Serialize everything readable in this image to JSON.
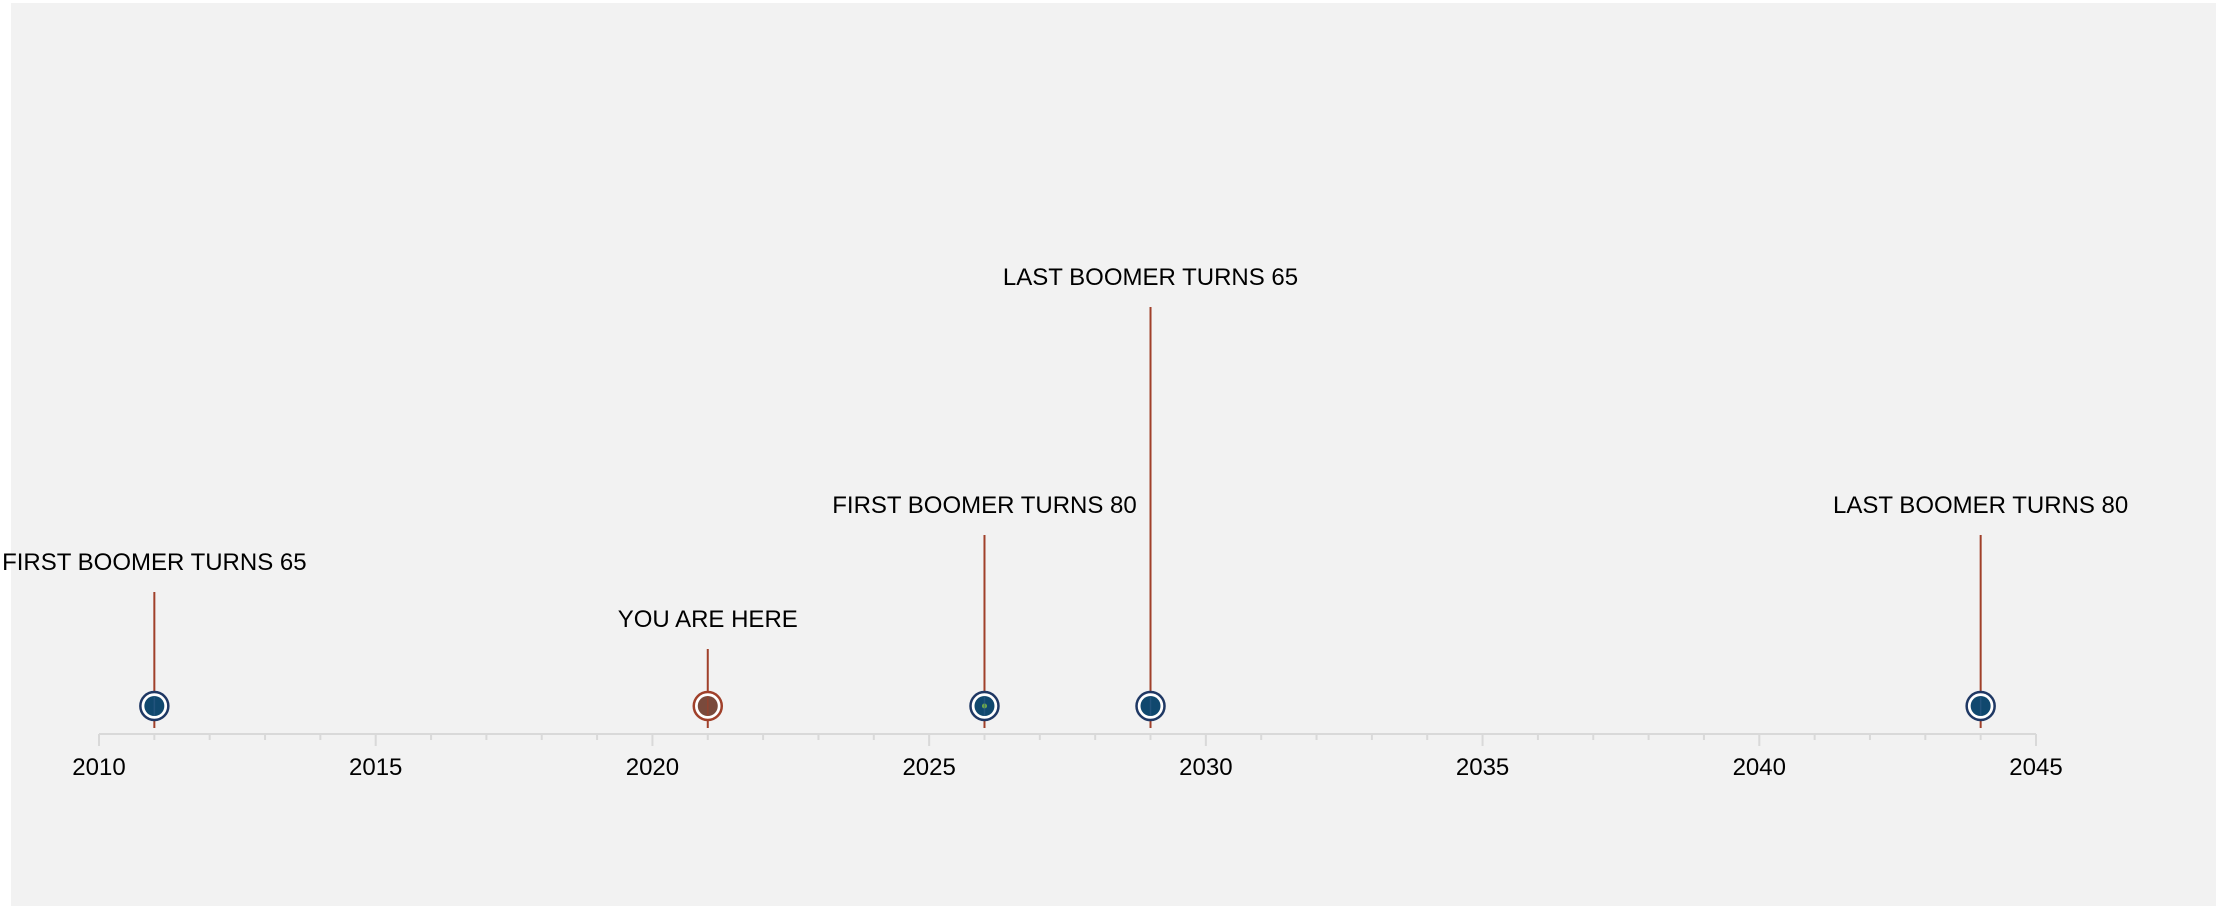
{
  "chart_data": {
    "type": "timeline",
    "title": "",
    "xlabel": "",
    "ylabel": "",
    "xlim": [
      2010,
      2045
    ],
    "major_ticks": [
      2010,
      2015,
      2020,
      2025,
      2030,
      2035,
      2040,
      2045
    ],
    "tick_labels": [
      "2010",
      "2015",
      "2020",
      "2025",
      "2030",
      "2035",
      "2040",
      "2045"
    ],
    "minor_tick_step": 1,
    "grid": false,
    "legend": "none",
    "events": [
      {
        "year": 2011,
        "label": "FIRST BOOMER TURNS 65",
        "height": 2.0,
        "marker_color": "#1f3864"
      },
      {
        "year": 2021,
        "label": "YOU ARE HERE",
        "height": 1.0,
        "marker_color": "#a0402a"
      },
      {
        "year": 2026,
        "label": "FIRST BOOMER TURNS 80",
        "height": 3.0,
        "marker_color": "#1f3864",
        "marker_dot_color": "#70ad47"
      },
      {
        "year": 2029,
        "label": "LAST BOOMER TURNS 65",
        "height": 7.0,
        "marker_color": "#1f3864"
      },
      {
        "year": 2044,
        "label": "LAST BOOMER TURNS 80",
        "height": 3.0,
        "marker_color": "#1f3864"
      }
    ]
  },
  "colors": {
    "background": "#f2f2f2",
    "axis": "#d9d9d9",
    "leader_line": "#a0402a",
    "marker_fill": "#10486e",
    "marker_ring": "#1f3864"
  }
}
